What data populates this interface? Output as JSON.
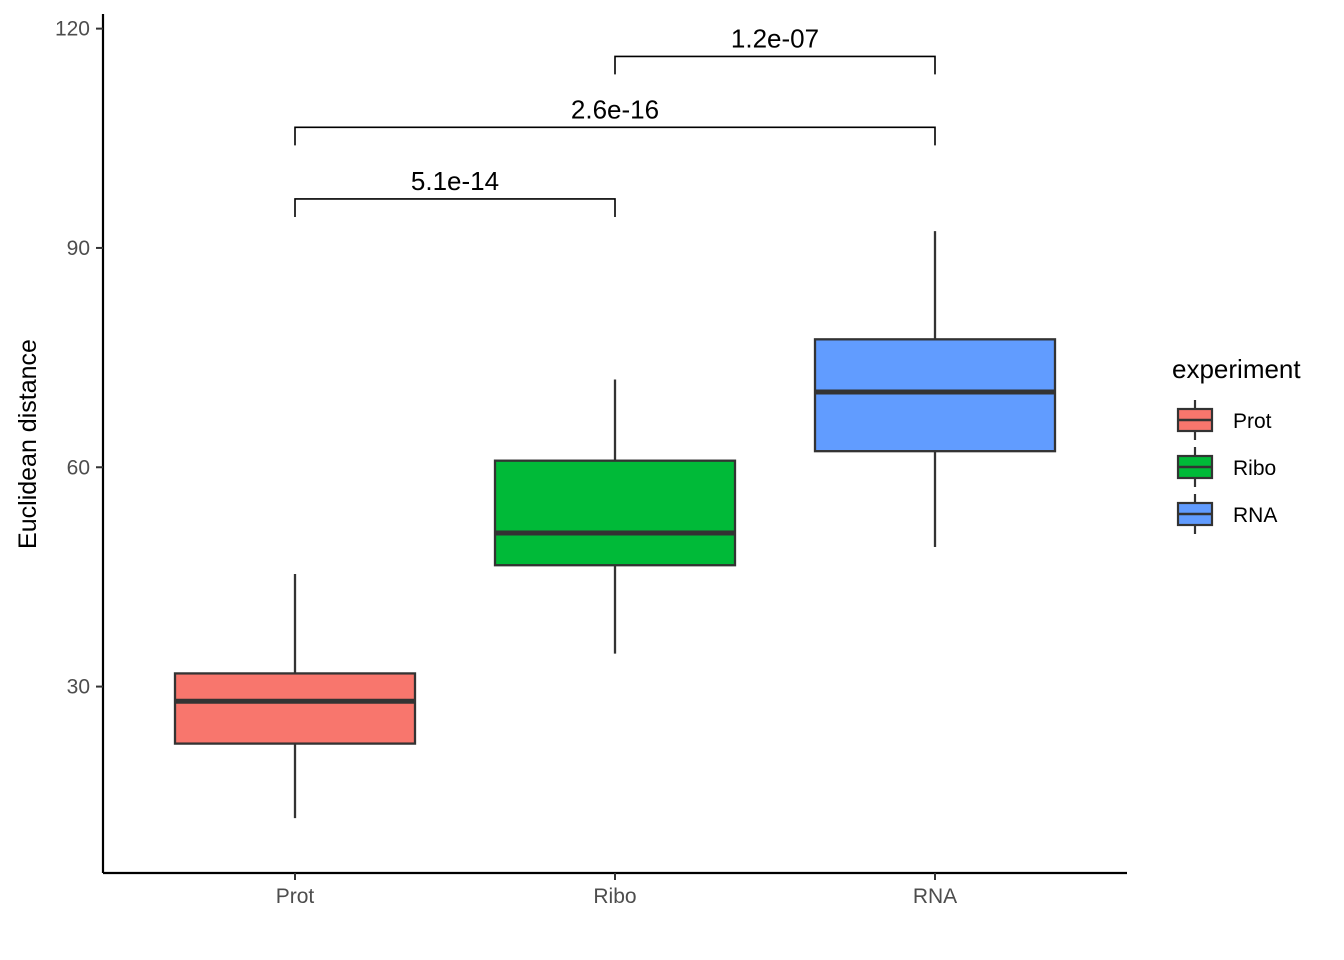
{
  "chart_data": {
    "type": "box",
    "categories": [
      "Prot",
      "Ribo",
      "RNA"
    ],
    "ylabel": "Euclidean distance",
    "xlabel": "",
    "ylim": [
      4.5,
      122
    ],
    "yticks": [
      30,
      60,
      90,
      120
    ],
    "grid": false,
    "boxes": [
      {
        "category": "Prot",
        "whisker_low": 12,
        "q1": 22.2,
        "median": 28,
        "q3": 31.8,
        "whisker_high": 45.4,
        "color": "#F8766D"
      },
      {
        "category": "Ribo",
        "whisker_low": 34.5,
        "q1": 46.6,
        "median": 51,
        "q3": 60.9,
        "whisker_high": 72,
        "color": "#00BA38"
      },
      {
        "category": "RNA",
        "whisker_low": 49.1,
        "q1": 62.2,
        "median": 70.3,
        "q3": 77.5,
        "whisker_high": 92.3,
        "color": "#619CFF"
      }
    ],
    "comparisons": [
      {
        "from": "Prot",
        "to": "Ribo",
        "label": "5.1e-14",
        "y": 96.7
      },
      {
        "from": "Prot",
        "to": "RNA",
        "label": "2.6e-16",
        "y": 106.5
      },
      {
        "from": "Ribo",
        "to": "RNA",
        "label": "1.2e-07",
        "y": 116.2
      }
    ],
    "legend": {
      "title": "experiment",
      "position": "right",
      "items": [
        {
          "label": "Prot",
          "color": "#F8766D"
        },
        {
          "label": "Ribo",
          "color": "#00BA38"
        },
        {
          "label": "RNA",
          "color": "#619CFF"
        }
      ]
    }
  }
}
